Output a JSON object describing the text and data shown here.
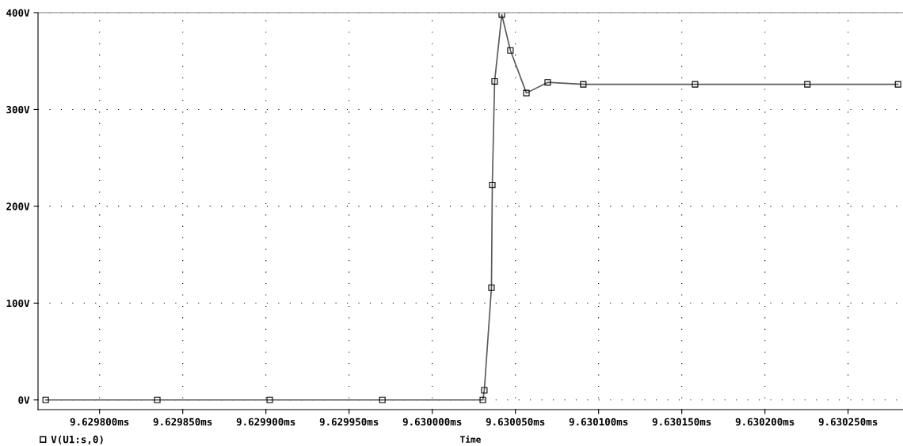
{
  "chart_data": {
    "type": "line",
    "xlabel": "Time",
    "x": [
      9.6297676,
      9.6298347,
      9.6299023,
      9.62997,
      9.6300304,
      9.6300313,
      9.6300356,
      9.6300361,
      9.6300375,
      9.6300418,
      9.630047,
      9.6300566,
      9.6300694,
      9.6300908,
      9.630158,
      9.6302255,
      9.63028
    ],
    "series": [
      {
        "name": "V(U1:s,0)",
        "color": "#5a5a5a",
        "values": [
          0,
          0,
          0,
          0,
          0,
          10,
          116,
          222,
          329,
          398,
          361,
          317,
          328,
          326,
          326,
          326,
          326
        ]
      }
    ],
    "xlim": [
      9.629763,
      9.630283
    ],
    "xticks": [
      {
        "value": 9.6298,
        "label": "9.629800ms"
      },
      {
        "value": 9.62985,
        "label": "9.629850ms"
      },
      {
        "value": 9.6299,
        "label": "9.629900ms"
      },
      {
        "value": 9.62995,
        "label": "9.629950ms"
      },
      {
        "value": 9.63,
        "label": "9.630000ms"
      },
      {
        "value": 9.63005,
        "label": "9.630050ms"
      },
      {
        "value": 9.6301,
        "label": "9.630100ms"
      },
      {
        "value": 9.63015,
        "label": "9.630150ms"
      },
      {
        "value": 9.6302,
        "label": "9.630200ms"
      },
      {
        "value": 9.63025,
        "label": "9.630250ms"
      }
    ],
    "ylim": [
      -10,
      400
    ],
    "yticks": [
      {
        "value": 0,
        "label": "0V"
      },
      {
        "value": 100,
        "label": "100V"
      },
      {
        "value": 200,
        "label": "200V"
      },
      {
        "value": 300,
        "label": "300V"
      },
      {
        "value": 400,
        "label": "400V"
      }
    ],
    "grid": true,
    "marker": "square",
    "line_style": "solid",
    "legend": "bottom left"
  }
}
